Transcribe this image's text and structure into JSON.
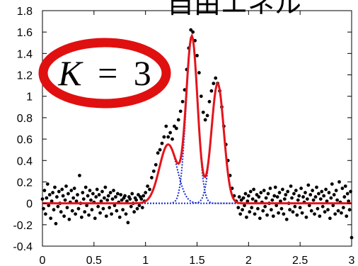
{
  "chart_data": {
    "type": "scatter",
    "title": "",
    "xlabel": "",
    "ylabel": "",
    "xlim": [
      0,
      3
    ],
    "ylim": [
      -0.4,
      1.8
    ],
    "x_ticks": [
      0,
      0.5,
      1,
      1.5,
      2,
      2.5,
      3
    ],
    "x_tick_labels": [
      "0",
      "0.5",
      "1",
      "1.5",
      "2",
      "2.5",
      "3"
    ],
    "y_ticks": [
      1.8,
      1.6,
      1.4,
      1.2,
      1,
      0.8,
      0.6,
      0.4,
      0.2,
      0,
      -0.2,
      -0.4
    ],
    "y_tick_labels": [
      "1.8",
      "1.6",
      "1.4",
      "1.2",
      "1",
      "0.8",
      "0.6",
      "0.4",
      "0.2",
      "0",
      "-0.2",
      "-0.4"
    ],
    "grid": false,
    "components": [
      {
        "kind": "gaussian",
        "mu": 1.22,
        "sigma": 0.085,
        "amplitude": 0.55
      },
      {
        "kind": "gaussian",
        "mu": 1.45,
        "sigma": 0.055,
        "amplitude": 1.55
      },
      {
        "kind": "gaussian",
        "mu": 1.7,
        "sigma": 0.06,
        "amplitude": 1.12
      }
    ],
    "colors": {
      "mixture": "#e4141b",
      "components": "#1a2ecc",
      "points": "#000000",
      "ellipse": "#e01010"
    },
    "annotation": {
      "text": "K = 3",
      "var": "K",
      "eq": "=",
      "num": "3"
    },
    "title_fragment": "自由エネル",
    "points": [
      [
        0.0,
        0.04
      ],
      [
        0.01,
        -0.05
      ],
      [
        0.02,
        0.12
      ],
      [
        0.03,
        -0.1
      ],
      [
        0.04,
        0.05
      ],
      [
        0.05,
        0.18
      ],
      [
        0.06,
        -0.02
      ],
      [
        0.07,
        0.08
      ],
      [
        0.08,
        -0.14
      ],
      [
        0.09,
        0.02
      ],
      [
        0.1,
        0.1
      ],
      [
        0.11,
        -0.06
      ],
      [
        0.12,
        0.15
      ],
      [
        0.13,
        -0.19
      ],
      [
        0.14,
        0.06
      ],
      [
        0.15,
        -0.03
      ],
      [
        0.16,
        0.11
      ],
      [
        0.17,
        0.0
      ],
      [
        0.18,
        -0.08
      ],
      [
        0.19,
        0.13
      ],
      [
        0.2,
        0.07
      ],
      [
        0.21,
        -0.12
      ],
      [
        0.22,
        0.03
      ],
      [
        0.23,
        0.16
      ],
      [
        0.24,
        -0.04
      ],
      [
        0.25,
        0.09
      ],
      [
        0.26,
        -0.15
      ],
      [
        0.27,
        0.01
      ],
      [
        0.28,
        0.12
      ],
      [
        0.29,
        -0.07
      ],
      [
        0.3,
        0.05
      ],
      [
        0.31,
        0.14
      ],
      [
        0.32,
        -0.1
      ],
      [
        0.33,
        0.02
      ],
      [
        0.34,
        0.08
      ],
      [
        0.35,
        -0.05
      ],
      [
        0.36,
        0.26
      ],
      [
        0.37,
        0.0
      ],
      [
        0.38,
        -0.13
      ],
      [
        0.39,
        0.1
      ],
      [
        0.4,
        0.04
      ],
      [
        0.41,
        -0.08
      ],
      [
        0.42,
        0.15
      ],
      [
        0.43,
        -0.02
      ],
      [
        0.44,
        0.07
      ],
      [
        0.45,
        -0.11
      ],
      [
        0.46,
        0.12
      ],
      [
        0.47,
        0.03
      ],
      [
        0.48,
        -0.06
      ],
      [
        0.49,
        0.09
      ],
      [
        0.5,
        0.01
      ],
      [
        0.51,
        -0.14
      ],
      [
        0.52,
        0.06
      ],
      [
        0.53,
        0.13
      ],
      [
        0.54,
        -0.03
      ],
      [
        0.55,
        0.08
      ],
      [
        0.56,
        -0.09
      ],
      [
        0.57,
        0.02
      ],
      [
        0.58,
        0.11
      ],
      [
        0.59,
        -0.05
      ],
      [
        0.6,
        0.05
      ],
      [
        0.61,
        0.15
      ],
      [
        0.62,
        -0.12
      ],
      [
        0.63,
        0.03
      ],
      [
        0.64,
        0.07
      ],
      [
        0.65,
        -0.04
      ],
      [
        0.66,
        0.1
      ],
      [
        0.67,
        -0.1
      ],
      [
        0.68,
        0.04
      ],
      [
        0.69,
        0.12
      ],
      [
        0.7,
        -0.02
      ],
      [
        0.71,
        0.06
      ],
      [
        0.72,
        -0.07
      ],
      [
        0.73,
        0.09
      ],
      [
        0.74,
        0.01
      ],
      [
        0.75,
        -0.13
      ],
      [
        0.76,
        0.08
      ],
      [
        0.77,
        0.03
      ],
      [
        0.78,
        -0.06
      ],
      [
        0.79,
        0.05
      ],
      [
        0.8,
        0.07
      ],
      [
        0.81,
        -0.1
      ],
      [
        0.82,
        0.02
      ],
      [
        0.83,
        -0.18
      ],
      [
        0.84,
        0.06
      ],
      [
        0.85,
        0.04
      ],
      [
        0.86,
        -0.03
      ],
      [
        0.87,
        0.09
      ],
      [
        0.88,
        0.0
      ],
      [
        0.89,
        -0.08
      ],
      [
        0.9,
        0.05
      ],
      [
        0.91,
        0.03
      ],
      [
        0.92,
        -0.05
      ],
      [
        0.93,
        0.08
      ],
      [
        0.94,
        -0.02
      ],
      [
        0.95,
        0.06
      ],
      [
        0.96,
        0.04
      ],
      [
        0.97,
        -0.04
      ],
      [
        0.98,
        0.07
      ],
      [
        0.99,
        0.02
      ],
      [
        1.0,
        0.1
      ],
      [
        1.02,
        0.16
      ],
      [
        1.04,
        0.13
      ],
      [
        1.06,
        0.24
      ],
      [
        1.08,
        0.3
      ],
      [
        1.1,
        0.36
      ],
      [
        1.12,
        0.47
      ],
      [
        1.14,
        0.5
      ],
      [
        1.16,
        0.56
      ],
      [
        1.18,
        0.62
      ],
      [
        1.2,
        0.72
      ],
      [
        1.22,
        0.62
      ],
      [
        1.24,
        0.66
      ],
      [
        1.26,
        0.6
      ],
      [
        1.28,
        0.72
      ],
      [
        1.3,
        0.7
      ],
      [
        1.32,
        0.78
      ],
      [
        1.34,
        0.86
      ],
      [
        1.36,
        0.95
      ],
      [
        1.38,
        1.06
      ],
      [
        1.4,
        1.25
      ],
      [
        1.42,
        1.45
      ],
      [
        1.44,
        1.62
      ],
      [
        1.46,
        1.6
      ],
      [
        1.48,
        1.52
      ],
      [
        1.5,
        1.38
      ],
      [
        1.52,
        1.22
      ],
      [
        1.54,
        1.0
      ],
      [
        1.56,
        0.85
      ],
      [
        1.58,
        0.78
      ],
      [
        1.6,
        0.82
      ],
      [
        1.62,
        0.95
      ],
      [
        1.64,
        1.05
      ],
      [
        1.66,
        1.12
      ],
      [
        1.68,
        1.17
      ],
      [
        1.7,
        1.12
      ],
      [
        1.72,
        1.05
      ],
      [
        1.74,
        0.9
      ],
      [
        1.76,
        0.72
      ],
      [
        1.78,
        0.55
      ],
      [
        1.8,
        0.4
      ],
      [
        1.82,
        0.26
      ],
      [
        1.84,
        0.14
      ],
      [
        1.86,
        0.07
      ],
      [
        1.88,
        0.02
      ],
      [
        1.9,
        -0.04
      ],
      [
        1.91,
        0.06
      ],
      [
        1.92,
        -0.1
      ],
      [
        1.93,
        0.03
      ],
      [
        1.94,
        -0.06
      ],
      [
        1.95,
        0.05
      ],
      [
        1.96,
        -0.02
      ],
      [
        1.97,
        0.09
      ],
      [
        1.98,
        -0.13
      ],
      [
        1.99,
        0.02
      ],
      [
        2.0,
        0.07
      ],
      [
        2.01,
        -0.08
      ],
      [
        2.02,
        0.11
      ],
      [
        2.03,
        -0.04
      ],
      [
        2.04,
        0.04
      ],
      [
        2.05,
        0.13
      ],
      [
        2.06,
        -0.1
      ],
      [
        2.07,
        0.02
      ],
      [
        2.08,
        0.08
      ],
      [
        2.09,
        -0.05
      ],
      [
        2.1,
        0.06
      ],
      [
        2.11,
        -0.14
      ],
      [
        2.12,
        0.1
      ],
      [
        2.13,
        0.01
      ],
      [
        2.14,
        -0.07
      ],
      [
        2.15,
        0.12
      ],
      [
        2.16,
        -0.03
      ],
      [
        2.17,
        0.05
      ],
      [
        2.18,
        -0.11
      ],
      [
        2.19,
        0.09
      ],
      [
        2.2,
        0.0
      ],
      [
        2.21,
        0.14
      ],
      [
        2.22,
        -0.06
      ],
      [
        2.23,
        0.03
      ],
      [
        2.24,
        -0.12
      ],
      [
        2.25,
        0.07
      ],
      [
        2.26,
        0.15
      ],
      [
        2.27,
        -0.02
      ],
      [
        2.28,
        0.06
      ],
      [
        2.29,
        -0.09
      ],
      [
        2.3,
        0.1
      ],
      [
        2.31,
        0.02
      ],
      [
        2.32,
        -0.05
      ],
      [
        2.33,
        0.13
      ],
      [
        2.34,
        -0.1
      ],
      [
        2.35,
        0.04
      ],
      [
        2.36,
        0.08
      ],
      [
        2.37,
        -0.15
      ],
      [
        2.38,
        0.11
      ],
      [
        2.39,
        0.0
      ],
      [
        2.4,
        -0.06
      ],
      [
        2.41,
        0.16
      ],
      [
        2.42,
        0.05
      ],
      [
        2.43,
        -0.08
      ],
      [
        2.44,
        0.09
      ],
      [
        2.45,
        -0.03
      ],
      [
        2.46,
        0.12
      ],
      [
        2.47,
        -0.11
      ],
      [
        2.48,
        0.03
      ],
      [
        2.49,
        0.07
      ],
      [
        2.5,
        -0.04
      ],
      [
        2.51,
        0.14
      ],
      [
        2.52,
        -0.09
      ],
      [
        2.53,
        0.06
      ],
      [
        2.54,
        0.01
      ],
      [
        2.55,
        0.1
      ],
      [
        2.56,
        -0.13
      ],
      [
        2.57,
        0.04
      ],
      [
        2.58,
        0.17
      ],
      [
        2.59,
        -0.02
      ],
      [
        2.6,
        0.08
      ],
      [
        2.61,
        -0.07
      ],
      [
        2.62,
        0.12
      ],
      [
        2.63,
        0.03
      ],
      [
        2.64,
        -0.1
      ],
      [
        2.65,
        0.06
      ],
      [
        2.66,
        0.15
      ],
      [
        2.67,
        -0.05
      ],
      [
        2.68,
        0.09
      ],
      [
        2.69,
        -0.12
      ],
      [
        2.7,
        0.04
      ],
      [
        2.71,
        0.11
      ],
      [
        2.72,
        -0.03
      ],
      [
        2.73,
        0.07
      ],
      [
        2.74,
        -0.08
      ],
      [
        2.75,
        0.13
      ],
      [
        2.76,
        0.02
      ],
      [
        2.77,
        -0.06
      ],
      [
        2.78,
        0.1
      ],
      [
        2.79,
        -0.14
      ],
      [
        2.8,
        0.05
      ],
      [
        2.81,
        0.18
      ],
      [
        2.82,
        -0.02
      ],
      [
        2.83,
        0.08
      ],
      [
        2.84,
        -0.1
      ],
      [
        2.85,
        0.12
      ],
      [
        2.86,
        0.03
      ],
      [
        2.87,
        -0.07
      ],
      [
        2.88,
        0.2
      ],
      [
        2.89,
        0.01
      ],
      [
        2.9,
        -0.09
      ],
      [
        2.91,
        0.14
      ],
      [
        2.92,
        -0.04
      ],
      [
        2.93,
        0.06
      ],
      [
        2.94,
        0.16
      ],
      [
        2.95,
        -0.12
      ],
      [
        2.96,
        0.09
      ],
      [
        2.97,
        0.02
      ],
      [
        2.98,
        -0.06
      ],
      [
        2.99,
        0.11
      ],
      [
        3.0,
        -0.32
      ]
    ]
  }
}
